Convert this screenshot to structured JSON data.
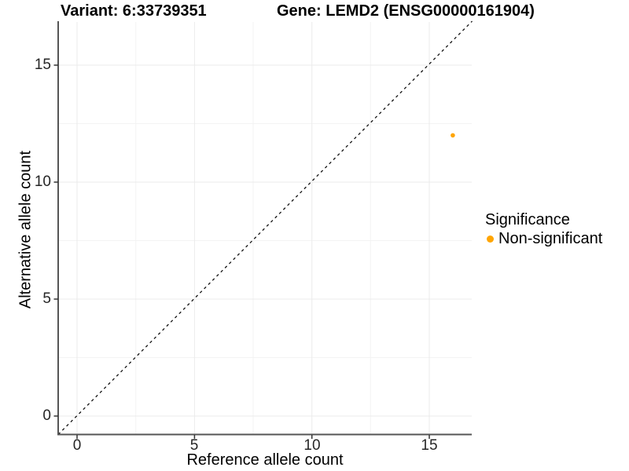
{
  "figure": {
    "titles": {
      "variant": "Variant: 6:33739351",
      "gene": "Gene: LEMD2 (ENSG00000161904)"
    },
    "x_axis": {
      "title": "Reference allele count",
      "tick_labels": [
        "0",
        "5",
        "10",
        "15"
      ]
    },
    "y_axis": {
      "title": "Alternative allele count",
      "tick_labels": [
        "0",
        "5",
        "10",
        "15"
      ]
    },
    "legend": {
      "title": "Significance",
      "items": [
        {
          "label": "Non-significant",
          "color": "#FFA500"
        }
      ]
    }
  },
  "chart_data": {
    "type": "scatter",
    "title": "Variant: 6:33739351 | Gene: LEMD2 (ENSG00000161904)",
    "xlabel": "Reference allele count",
    "ylabel": "Alternative allele count",
    "xlim": [
      -0.8,
      16.8
    ],
    "ylim": [
      -0.8,
      16.8
    ],
    "xticks": [
      0,
      5,
      10,
      15
    ],
    "yticks": [
      0,
      5,
      10,
      15
    ],
    "grid": "on",
    "legend_title": "Significance",
    "legend_position": "right",
    "series": [
      {
        "name": "Non-significant",
        "color": "#FFA500",
        "marker": "circle",
        "points": [
          {
            "x": 16,
            "y": 12
          }
        ]
      }
    ],
    "reference_line": {
      "kind": "identity y=x",
      "style": "dashed",
      "color": "#000000"
    }
  }
}
